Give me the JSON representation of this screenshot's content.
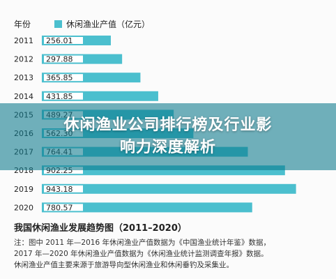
{
  "chart_data": {
    "type": "bar",
    "orientation": "horizontal",
    "category_header": "年份",
    "categories": [
      "2011",
      "2012",
      "2013",
      "2014",
      "2015",
      "2016",
      "2017",
      "2018",
      "2019",
      "2020"
    ],
    "series": [
      {
        "name": "休闲渔业产值（亿元）",
        "values": [
          256.01,
          297.88,
          365.85,
          431.85,
          489.27,
          562.3,
          764.41,
          902.25,
          943.18,
          780.57
        ]
      }
    ],
    "data_labels": [
      "256.01",
      "297.88",
      "365.85",
      "431.85",
      "489.27",
      "562.30",
      "764.41",
      "902.25",
      "943.18",
      "780.57"
    ],
    "title": "我国休闲渔业发展趋势图（2011–2020）",
    "xlim": [
      0,
      970
    ],
    "grid": false,
    "legend": "top-left",
    "colors": {
      "bar": "#4bbfce",
      "label_bg": "#ffffff"
    }
  },
  "note": {
    "line1": "注：图中 2011 年—2016 年休闲渔业产值数据为《中国渔业统计年鉴》数据，",
    "line2": "2017 年—2020 年休闲渔业产值数据为《休闲渔业统计监测调查年报》数据。",
    "line3": "休闲渔业产值主要来源于旅游导向型休闲渔业和休闲垂钓及采集业。"
  },
  "banner": {
    "line1": "休闲渔业公司排行榜及行业影",
    "line2": "响力深度解析"
  }
}
